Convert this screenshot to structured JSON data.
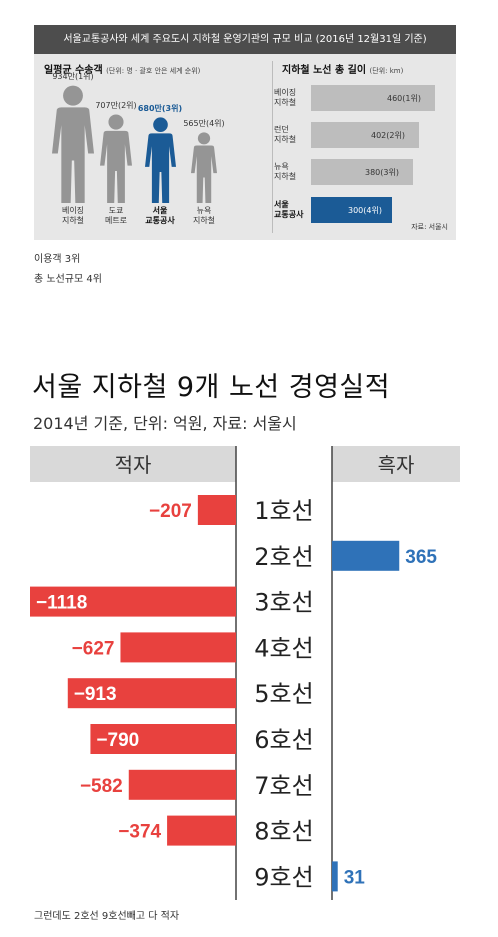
{
  "info": {
    "title": "서울교통공사와 세계 주요도시 지하철 운영기관의 규모 비교 (2016년 12월31일 기준)",
    "ridership_head": "일평균 수송객",
    "ridership_unit": "(단위: 명 · 괄호 안은 세계 순위)",
    "length_head": "지하철 노선 총 길이",
    "length_unit": "(단위: km)",
    "source": "자료: 서울시",
    "colors": {
      "highlight": "#1b5b96",
      "neutral": "#959595",
      "bar": "#bdbdbd"
    }
  },
  "info_chart": [
    {
      "type": "bar",
      "title": "일평균 수송객",
      "categories": [
        "베이징\n지하철",
        "도쿄\n메트로",
        "서울\n교통공사",
        "뉴욕\n지하철"
      ],
      "values": [
        9340000,
        7070000,
        6800000,
        5650000
      ],
      "value_labels": [
        "934만(1위)",
        "707만(2위)",
        "680만(3위)",
        "565만(4위)"
      ],
      "highlight_index": 2
    },
    {
      "type": "bar",
      "title": "지하철 노선 총 길이",
      "categories": [
        "베이징\n지하철",
        "런던\n지하철",
        "뉴욕\n지하철",
        "서울\n교통공사"
      ],
      "values": [
        460,
        402,
        380,
        300
      ],
      "value_labels": [
        "460(1위)",
        "402(2위)",
        "380(3위)",
        "300(4위)"
      ],
      "highlight_index": 3
    }
  ],
  "notes": {
    "line1": "이용객 3위",
    "line2": "총 노선규모 4위",
    "bottom": "그런데도 2호선 9호선빼고 다 적자"
  },
  "chart_data": {
    "type": "bar",
    "title": "서울 지하철 9개 노선 경영실적",
    "subtitle": "2014년 기준, 단위: 억원, 자료: 서울시",
    "left_header": "적자",
    "right_header": "흑자",
    "categories": [
      "1호선",
      "2호선",
      "3호선",
      "4호선",
      "5호선",
      "6호선",
      "7호선",
      "8호선",
      "9호선"
    ],
    "values": [
      -207,
      365,
      -1118,
      -627,
      -913,
      -790,
      -582,
      -374,
      31
    ],
    "value_labels": [
      "−207",
      "365",
      "−1118",
      "−627",
      "−913",
      "−790",
      "−582",
      "−374",
      "31"
    ],
    "colors": {
      "negative": "#e8413e",
      "positive": "#2f72b8",
      "header_bg": "#d9d9d9"
    }
  }
}
